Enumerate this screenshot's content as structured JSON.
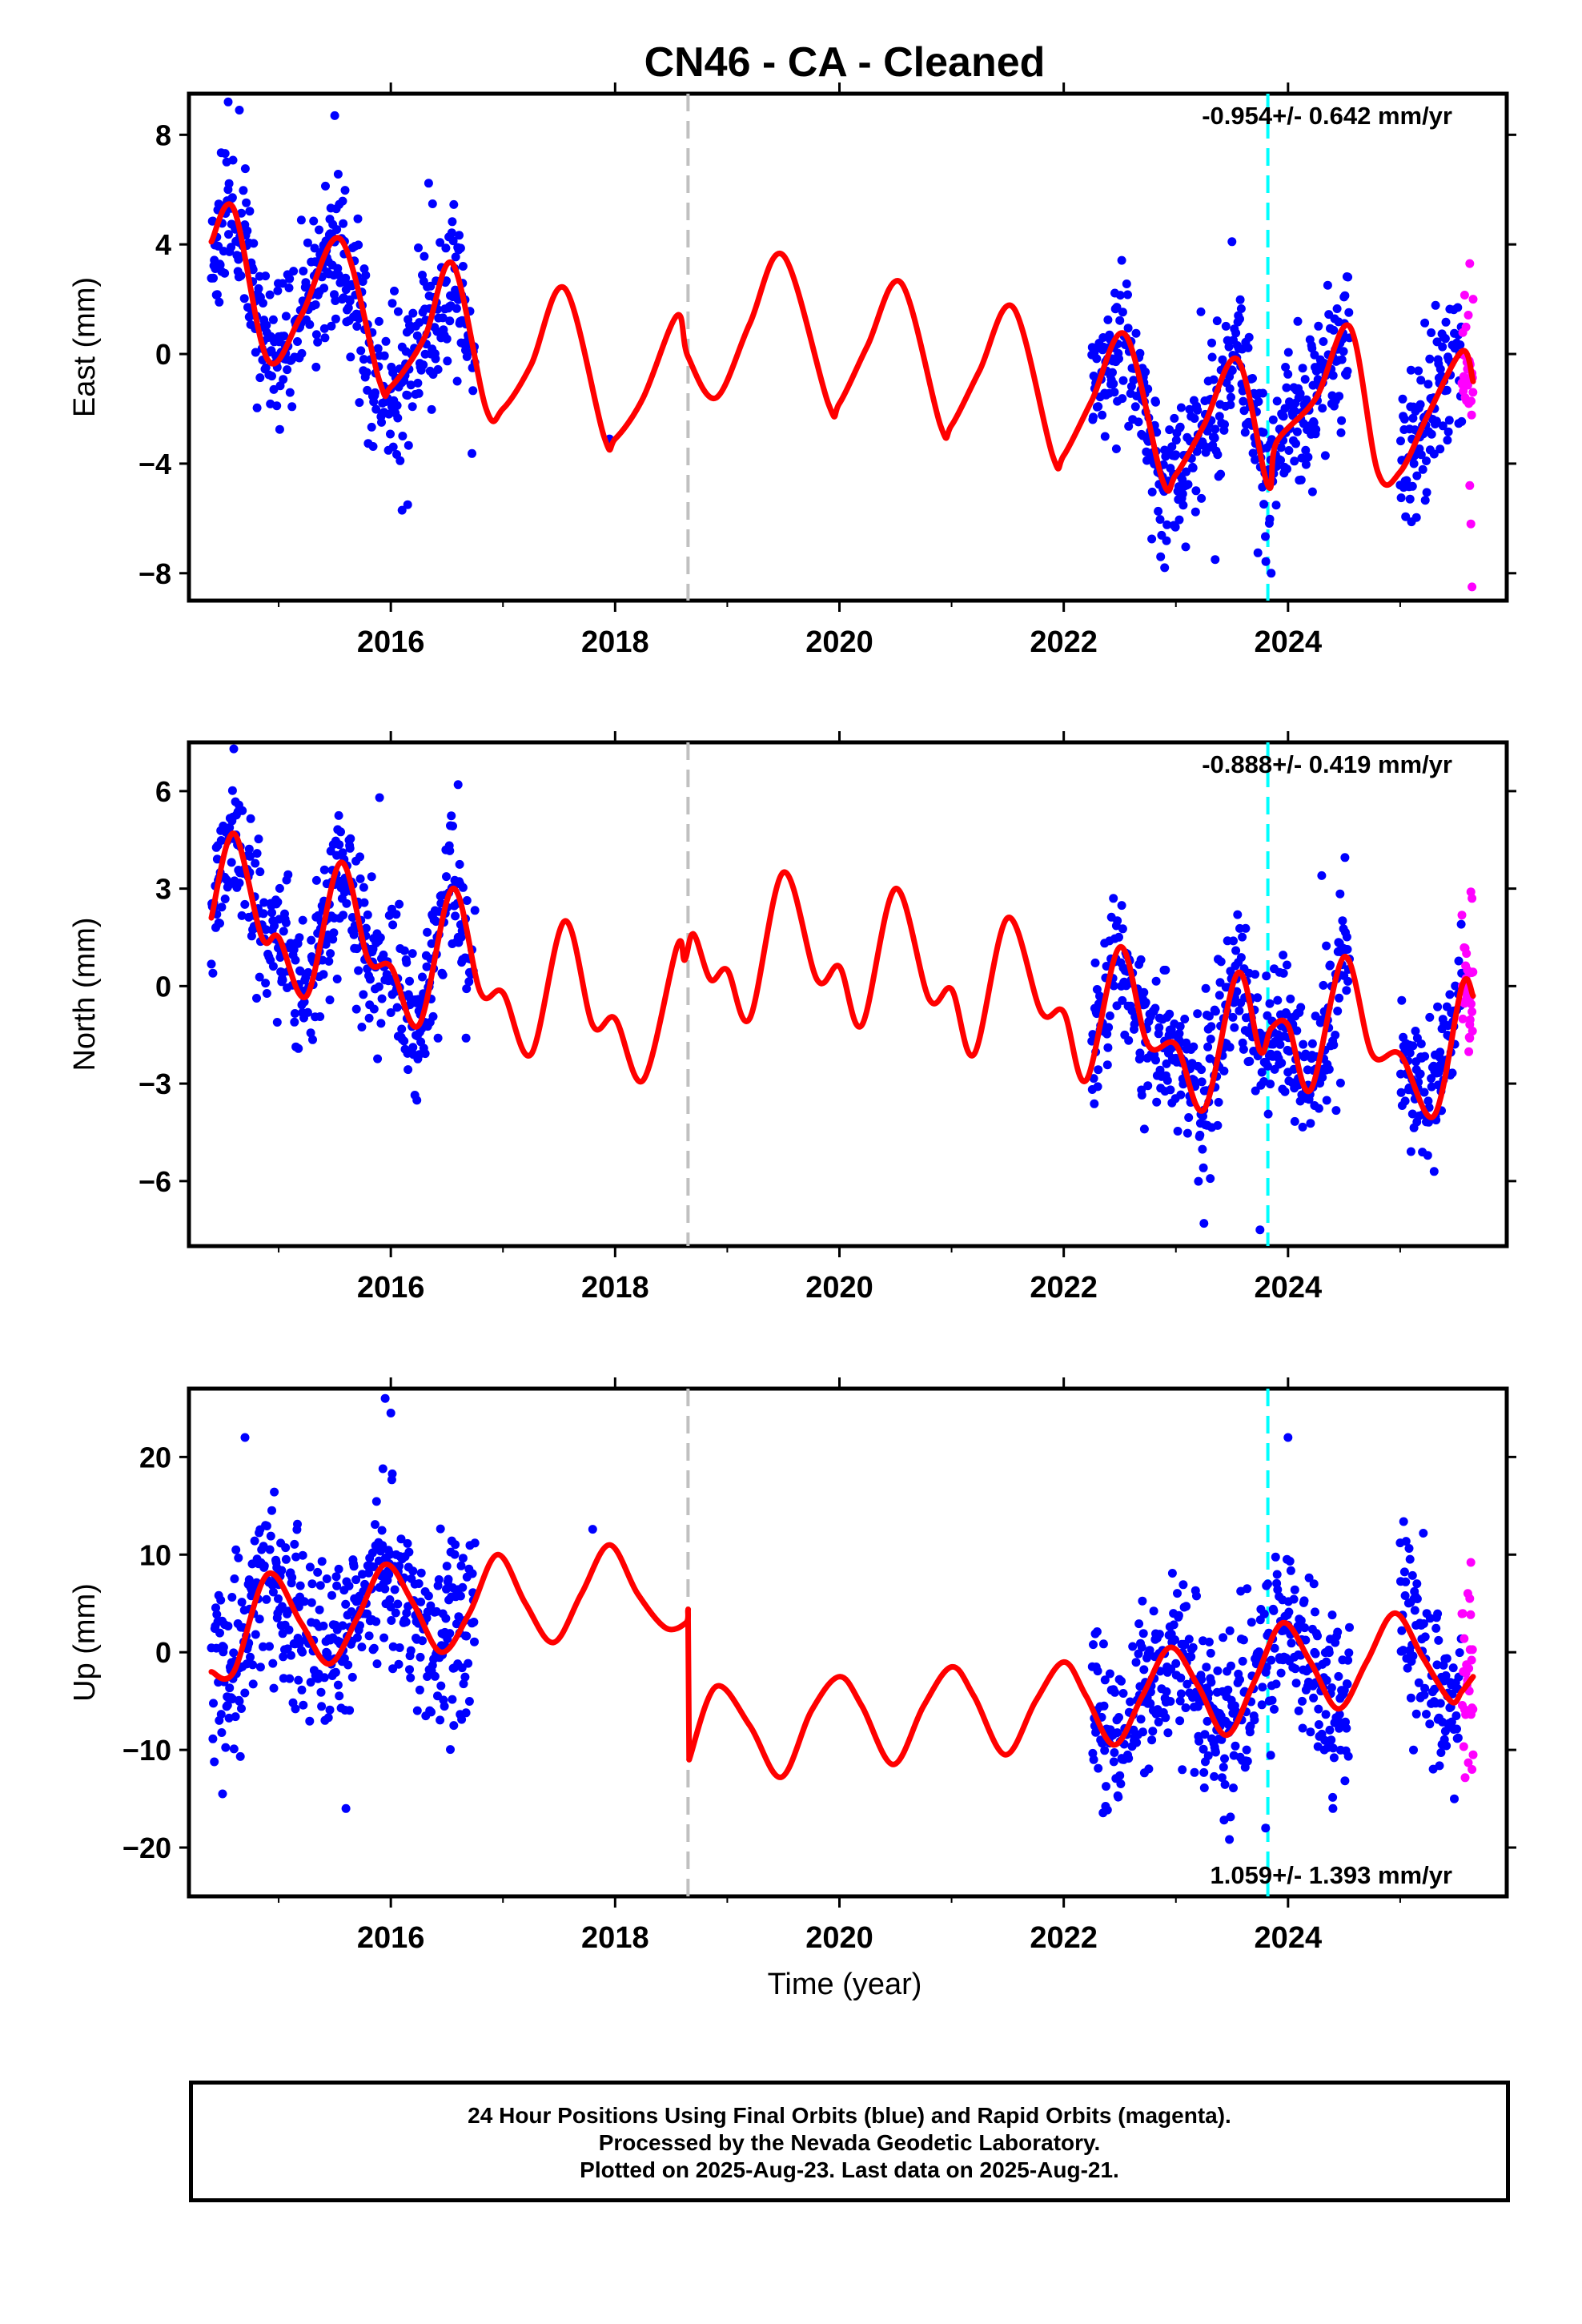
{
  "title": "CN46  - CA - Cleaned",
  "x_axis_label": "Time (year)",
  "footer": {
    "line1": "24 Hour Positions Using Final Orbits (blue) and Rapid Orbits (magenta).",
    "line2": "Processed by the Nevada Geodetic Laboratory.",
    "line3": "Plotted on 2025-Aug-23. Last data on 2025-Aug-21."
  },
  "colors": {
    "final_orbits": "#0000ff",
    "rapid_orbits": "#ff00ff",
    "model_fit": "#ff0000",
    "equipment_change_line": "#c0c0c0",
    "event_line": "#00ffff"
  },
  "chart_data": [
    {
      "type": "scatter",
      "ylabel": "East (mm)",
      "xlabel": "",
      "xlim": [
        2014.2,
        2025.95
      ],
      "ylim": [
        -9,
        9.5
      ],
      "yticks": [
        -8,
        -4,
        0,
        4,
        8
      ],
      "ytick_labels": [
        "−8",
        "−4",
        "0",
        "4",
        "8"
      ],
      "xticks": [
        2016,
        2018,
        2020,
        2022,
        2024
      ],
      "xtick_labels": [
        "2016",
        "2018",
        "2020",
        "2022",
        "2024"
      ],
      "rate_label": "-0.954+/- 0.642 mm/yr",
      "rate_position": "top-right",
      "vertical_lines": [
        {
          "x": 2018.65,
          "style": "dashed",
          "color": "gray"
        },
        {
          "x": 2023.82,
          "style": "dashed",
          "color": "cyan"
        }
      ],
      "data_segments": [
        [
          2014.4,
          2016.75
        ],
        [
          2022.25,
          2024.55
        ],
        [
          2025.0,
          2025.55
        ]
      ],
      "rapid_range": [
        2025.55,
        2025.65
      ],
      "noise_sigma": 1.4,
      "seed": 11,
      "model_fit": {
        "name": "model",
        "x": [
          2014.4,
          2014.6,
          2014.9,
          2015.2,
          2015.55,
          2015.9,
          2016.0,
          2016.3,
          2016.55,
          2016.85,
          2017.0,
          2017.25,
          2017.55,
          2017.9,
          2018.0,
          2018.25,
          2018.55,
          2018.65,
          2018.9,
          2019.2,
          2019.5,
          2019.9,
          2020.0,
          2020.25,
          2020.55,
          2020.9,
          2021.0,
          2021.25,
          2021.55,
          2021.9,
          2022.0,
          2022.25,
          2022.55,
          2022.88,
          2023.0,
          2023.25,
          2023.55,
          2023.82,
          2023.9,
          2024.25,
          2024.55,
          2024.8,
          2025.0,
          2025.25,
          2025.55,
          2025.65
        ],
        "values": [
          4.1,
          5.3,
          -0.2,
          1.4,
          4.2,
          -1.0,
          -1.2,
          0.6,
          3.3,
          -2.0,
          -2.0,
          -0.4,
          2.4,
          -3.0,
          -3.1,
          -1.6,
          1.4,
          -0.1,
          -1.6,
          1.1,
          3.6,
          -1.8,
          -1.8,
          0.3,
          2.6,
          -2.6,
          -2.6,
          -0.6,
          1.7,
          -3.7,
          -3.7,
          -1.7,
          0.7,
          -4.6,
          -4.4,
          -2.6,
          -0.2,
          -4.8,
          -3.2,
          -1.6,
          1.0,
          -4.3,
          -4.3,
          -2.2,
          0.1,
          -1.0
        ]
      },
      "spikes": [
        [
          2014.55,
          9.2
        ],
        [
          2014.65,
          8.9
        ],
        [
          2015.5,
          8.7
        ],
        [
          2016.1,
          -5.7
        ],
        [
          2016.15,
          -5.5
        ],
        [
          2017.95,
          -3.1
        ],
        [
          2022.9,
          -7.8
        ],
        [
          2023.35,
          -7.5
        ],
        [
          2023.85,
          -8.0
        ],
        [
          2023.5,
          4.1
        ],
        [
          2025.62,
          3.3
        ],
        [
          2025.64,
          -8.5
        ],
        [
          2025.63,
          -6.2
        ],
        [
          2025.62,
          -4.8
        ],
        [
          2025.65,
          2.0
        ]
      ]
    },
    {
      "type": "scatter",
      "ylabel": "North (mm)",
      "xlabel": "",
      "xlim": [
        2014.2,
        2025.95
      ],
      "ylim": [
        -8,
        7.5
      ],
      "yticks": [
        -6,
        -3,
        0,
        3,
        6
      ],
      "ytick_labels": [
        "−6",
        "−3",
        "0",
        "3",
        "6"
      ],
      "xticks": [
        2016,
        2018,
        2020,
        2022,
        2024
      ],
      "xtick_labels": [
        "2016",
        "2018",
        "2020",
        "2022",
        "2024"
      ],
      "rate_label": "-0.888+/- 0.419 mm/yr",
      "rate_position": "top-right",
      "vertical_lines": [
        {
          "x": 2018.65,
          "style": "dashed",
          "color": "gray"
        },
        {
          "x": 2023.82,
          "style": "dashed",
          "color": "cyan"
        }
      ],
      "data_segments": [
        [
          2014.4,
          2016.75
        ],
        [
          2022.25,
          2024.55
        ],
        [
          2025.0,
          2025.55
        ]
      ],
      "rapid_range": [
        2025.55,
        2025.65
      ],
      "noise_sigma": 1.1,
      "seed": 23,
      "model_fit": {
        "name": "model",
        "x": [
          2014.4,
          2014.6,
          2014.85,
          2015.0,
          2015.25,
          2015.55,
          2015.8,
          2016.0,
          2016.25,
          2016.55,
          2016.8,
          2017.0,
          2017.25,
          2017.55,
          2017.8,
          2018.0,
          2018.25,
          2018.55,
          2018.62,
          2018.7,
          2018.85,
          2019.0,
          2019.2,
          2019.5,
          2019.8,
          2020.0,
          2020.2,
          2020.5,
          2020.8,
          2021.0,
          2021.2,
          2021.5,
          2021.8,
          2022.0,
          2022.2,
          2022.5,
          2022.75,
          2023.0,
          2023.25,
          2023.55,
          2023.75,
          2023.85,
          2024.0,
          2024.2,
          2024.5,
          2024.75,
          2025.0,
          2025.3,
          2025.55,
          2025.65
        ],
        "values": [
          2.1,
          4.7,
          1.5,
          1.5,
          -0.3,
          3.8,
          0.8,
          0.6,
          -1.2,
          3.0,
          -0.2,
          -0.2,
          -2.1,
          2.0,
          -1.2,
          -1.0,
          -2.9,
          1.2,
          0.8,
          1.6,
          0.2,
          0.5,
          -1.0,
          3.5,
          0.2,
          0.6,
          -1.2,
          3.0,
          -0.4,
          -0.1,
          -2.1,
          2.1,
          -0.8,
          -0.8,
          -2.9,
          1.2,
          -1.8,
          -1.8,
          -3.8,
          0.4,
          -2.0,
          -1.3,
          -1.2,
          -3.2,
          0.9,
          -2.1,
          -2.1,
          -4.0,
          0.0,
          -0.3
        ]
      },
      "spikes": [
        [
          2014.6,
          7.3
        ],
        [
          2015.9,
          5.8
        ],
        [
          2016.6,
          6.2
        ],
        [
          2023.75,
          -7.5
        ],
        [
          2023.25,
          -7.3
        ],
        [
          2024.3,
          3.4
        ],
        [
          2025.63,
          2.9
        ],
        [
          2025.64,
          2.7
        ],
        [
          2025.62,
          -1.6
        ],
        [
          2023.55,
          2.2
        ]
      ]
    },
    {
      "type": "scatter",
      "ylabel": "Up (mm)",
      "xlabel": "Time (year)",
      "xlim": [
        2014.2,
        2025.95
      ],
      "ylim": [
        -25,
        27
      ],
      "yticks": [
        -20,
        -10,
        0,
        10,
        20
      ],
      "ytick_labels": [
        "−20",
        "−10",
        "0",
        "10",
        "20"
      ],
      "xticks": [
        2016,
        2018,
        2020,
        2022,
        2024
      ],
      "xtick_labels": [
        "2016",
        "2018",
        "2020",
        "2022",
        "2024"
      ],
      "rate_label": "1.059+/- 1.393 mm/yr",
      "rate_position": "bottom-right",
      "vertical_lines": [
        {
          "x": 2018.65,
          "style": "dashed",
          "color": "gray"
        },
        {
          "x": 2023.82,
          "style": "dashed",
          "color": "cyan"
        }
      ],
      "data_segments": [
        [
          2014.4,
          2016.75
        ],
        [
          2022.25,
          2024.55
        ],
        [
          2025.0,
          2025.55
        ]
      ],
      "rapid_range": [
        2025.55,
        2025.65
      ],
      "noise_sigma": 4.5,
      "seed": 37,
      "model_fit": {
        "name": "model",
        "x": [
          2014.4,
          2014.6,
          2014.9,
          2015.2,
          2015.45,
          2015.7,
          2015.95,
          2016.2,
          2016.45,
          2016.7,
          2016.95,
          2017.2,
          2017.45,
          2017.7,
          2017.95,
          2018.2,
          2018.45,
          2018.63,
          2018.65,
          2018.66,
          2018.9,
          2019.2,
          2019.48,
          2019.75,
          2020.0,
          2020.2,
          2020.48,
          2020.75,
          2021.0,
          2021.2,
          2021.48,
          2021.75,
          2022.0,
          2022.2,
          2022.45,
          2022.7,
          2022.95,
          2023.2,
          2023.45,
          2023.7,
          2023.95,
          2024.2,
          2024.45,
          2024.7,
          2024.95,
          2025.2,
          2025.45,
          2025.55,
          2025.65
        ],
        "values": [
          -2.0,
          -2.0,
          8.0,
          3.0,
          -1.2,
          3.5,
          9.0,
          5.0,
          0.0,
          4.0,
          10.0,
          5.0,
          1.0,
          6.0,
          11.0,
          6.0,
          2.5,
          3.0,
          4.3,
          -11.0,
          -3.5,
          -7.5,
          -12.8,
          -6.0,
          -2.5,
          -5.5,
          -11.5,
          -5.5,
          -1.5,
          -4.5,
          -10.5,
          -5.0,
          -1.0,
          -4.5,
          -9.5,
          -4.5,
          0.5,
          -3.5,
          -8.5,
          -3.0,
          3.0,
          -1.0,
          -5.8,
          -1.0,
          4.0,
          -0.5,
          -5.0,
          -4.0,
          -2.5
        ]
      },
      "spikes": [
        [
          2014.7,
          22.0
        ],
        [
          2015.95,
          26.0
        ],
        [
          2016.0,
          24.5
        ],
        [
          2015.6,
          -16.0
        ],
        [
          2014.5,
          -14.5
        ],
        [
          2017.8,
          12.6
        ],
        [
          2023.8,
          -18.0
        ],
        [
          2024.0,
          22.0
        ],
        [
          2024.4,
          -16.0
        ],
        [
          2025.63,
          9.2
        ],
        [
          2025.64,
          -12.0
        ],
        [
          2025.62,
          5.5
        ],
        [
          2025.65,
          -10.5
        ]
      ]
    }
  ]
}
